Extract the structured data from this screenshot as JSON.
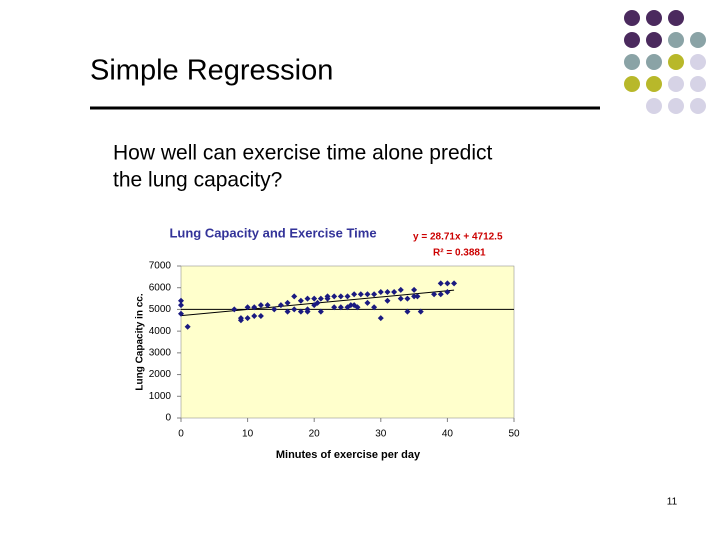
{
  "slide_title": "Simple Regression",
  "body_lines": [
    "How well can exercise time alone predict",
    "the lung capacity?"
  ],
  "page_number": "11",
  "chart_data": {
    "type": "scatter",
    "title": "Lung Capacity and Exercise Time",
    "annotations": [
      "y = 28.71x + 4712.5",
      "R² = 0.3881"
    ],
    "xlabel": "Minutes of exercise per day",
    "ylabel": "Lung Capacity in cc.",
    "xlim": [
      0,
      50
    ],
    "xticks": [
      0,
      10,
      20,
      30,
      40,
      50
    ],
    "ylim": [
      0,
      7000
    ],
    "yticks": [
      0,
      1000,
      2000,
      3000,
      4000,
      5000,
      6000,
      7000
    ],
    "color": "#1a1a80",
    "background": "#ffffcc",
    "hline": 5000,
    "trendline": {
      "slope": 28.71,
      "intercept": 4712.5
    },
    "x": [
      0,
      0,
      0,
      1,
      8,
      9,
      9,
      10,
      10,
      11,
      11,
      12,
      12,
      13,
      14,
      15,
      16,
      16,
      17,
      17,
      18,
      18,
      19,
      19,
      19,
      20,
      20,
      21,
      20.5,
      21,
      22,
      22,
      23,
      23,
      24,
      24,
      25,
      25,
      25.5,
      26,
      26,
      26.5,
      27,
      28,
      28,
      29,
      29,
      30,
      30,
      31,
      31,
      32,
      33,
      33,
      34,
      34,
      35,
      35,
      35.5,
      36,
      38,
      39,
      39,
      40,
      40,
      41
    ],
    "values": [
      5400,
      5200,
      4800,
      4200,
      5000,
      4600,
      4500,
      5100,
      4600,
      4700,
      5100,
      5200,
      4700,
      5200,
      5000,
      5200,
      4900,
      5300,
      5600,
      5000,
      5400,
      4900,
      5500,
      5000,
      4900,
      5500,
      5200,
      5500,
      5300,
      4900,
      5600,
      5500,
      5600,
      5100,
      5600,
      5100,
      5600,
      5100,
      5200,
      5700,
      5200,
      5100,
      5700,
      5700,
      5300,
      5700,
      5100,
      5800,
      4600,
      5800,
      5400,
      5800,
      5900,
      5500,
      5500,
      4900,
      5900,
      5600,
      5600,
      4900,
      5700,
      5700,
      6200,
      6200,
      5800,
      6200
    ]
  }
}
